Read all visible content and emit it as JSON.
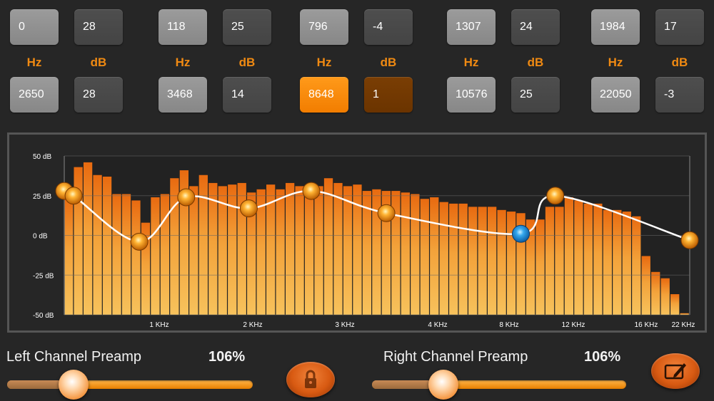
{
  "bands": [
    {
      "hz": "0",
      "db": "28"
    },
    {
      "hz": "118",
      "db": "25"
    },
    {
      "hz": "796",
      "db": "-4"
    },
    {
      "hz": "1307",
      "db": "24"
    },
    {
      "hz": "1984",
      "db": "17"
    },
    {
      "hz": "2650",
      "db": "28"
    },
    {
      "hz": "3468",
      "db": "14"
    },
    {
      "hz": "8648",
      "db": "1"
    },
    {
      "hz": "10576",
      "db": "25"
    },
    {
      "hz": "22050",
      "db": "-3"
    }
  ],
  "selected_band": 7,
  "units": {
    "hz": "Hz",
    "db": "dB"
  },
  "graph": {
    "y_ticks": [
      "50 dB",
      "25 dB",
      "0 dB",
      "-25 dB",
      "-50 dB"
    ],
    "x_ticks": [
      "1 KHz",
      "2 KHz",
      "3 KHz",
      "4 KHz",
      "8 KHz",
      "12 KHz",
      "16 KHz",
      "22 KHz"
    ]
  },
  "chart_data": {
    "type": "bar",
    "title": "",
    "xlabel": "",
    "ylabel": "",
    "ylim": [
      -50,
      50
    ],
    "spectrum_db": [
      25,
      43,
      46,
      38,
      37,
      26,
      26,
      22,
      8,
      24,
      26,
      36,
      41,
      31,
      38,
      33,
      31,
      32,
      33,
      27,
      29,
      32,
      29,
      33,
      31,
      30,
      31,
      36,
      33,
      31,
      32,
      28,
      29,
      28,
      28,
      27,
      26,
      23,
      24,
      21,
      20,
      20,
      18,
      18,
      18,
      16,
      15,
      14,
      10,
      10,
      18,
      18,
      24,
      22,
      20,
      20,
      16,
      16,
      15,
      12,
      -13,
      -23,
      -27,
      -37,
      -49
    ],
    "curve_points": [
      {
        "x": 0,
        "db": 28
      },
      {
        "x": 0.015,
        "db": 25
      },
      {
        "x": 0.12,
        "db": -4
      },
      {
        "x": 0.195,
        "db": 24
      },
      {
        "x": 0.295,
        "db": 17
      },
      {
        "x": 0.395,
        "db": 28
      },
      {
        "x": 0.515,
        "db": 14
      },
      {
        "x": 0.73,
        "db": 1
      },
      {
        "x": 0.785,
        "db": 25
      },
      {
        "x": 1.0,
        "db": -3
      }
    ]
  },
  "preamp": {
    "left": {
      "label": "Left Channel Preamp",
      "value": "106%",
      "level": 0.27
    },
    "right": {
      "label": "Right Channel Preamp",
      "value": "106%",
      "level": 0.28
    }
  },
  "buttons": {
    "lock_icon": "lock-icon",
    "edit_icon": "edit-icon"
  },
  "colors": {
    "accent": "#f08a12",
    "selected_node": "#1e90d8"
  }
}
